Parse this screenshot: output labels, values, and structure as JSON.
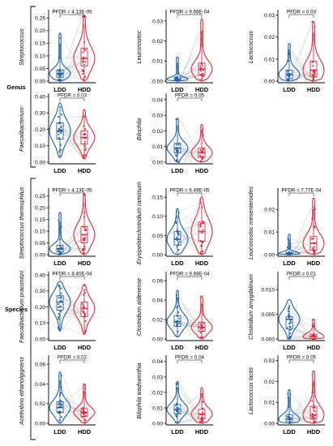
{
  "colors": {
    "ldd": "#1f5fa8",
    "hdd": "#e3263b",
    "pair_line": "#b0b0b0",
    "axis": "#000000"
  },
  "groups": [
    {
      "label": "Genus",
      "panels": [
        0,
        1,
        2,
        3,
        4
      ]
    },
    {
      "label": "Species",
      "panels": [
        5,
        6,
        7,
        8,
        9,
        10,
        11,
        12,
        13
      ]
    }
  ],
  "chart_data": [
    {
      "type": "violin",
      "group": "Genus",
      "ylabel": "Streptococcus",
      "categories": [
        "LDD",
        "HDD"
      ],
      "pfdr": "PFDR = 4.13E-05",
      "yticks": [
        "0.00",
        "0.05",
        "0.10",
        "0.15",
        "0.20",
        "0.25"
      ],
      "ylim": [
        0,
        0.27
      ],
      "grid": false,
      "series": [
        {
          "name": "LDD",
          "median": 0.03,
          "q1": 0.015,
          "q3": 0.045,
          "min": 0.0,
          "max": 0.19
        },
        {
          "name": "HDD",
          "median": 0.09,
          "q1": 0.06,
          "q3": 0.13,
          "min": 0.0,
          "max": 0.26
        }
      ]
    },
    {
      "type": "violin",
      "group": "Genus",
      "ylabel": "Leuconostoc",
      "categories": [
        "LDD",
        "HDD"
      ],
      "pfdr": "PFDR = 9.68E-04",
      "yticks": [
        "0.00",
        "0.01",
        "0.02",
        "0.03"
      ],
      "ylim": [
        0,
        0.034
      ],
      "grid": false,
      "series": [
        {
          "name": "LDD",
          "median": 0.001,
          "q1": 0.0005,
          "q3": 0.002,
          "min": 0.0,
          "max": 0.012
        },
        {
          "name": "HDD",
          "median": 0.006,
          "q1": 0.003,
          "q3": 0.009,
          "min": 0.0,
          "max": 0.031
        }
      ]
    },
    {
      "type": "violin",
      "group": "Genus",
      "ylabel": "Lactococcus",
      "categories": [
        "LDD",
        "HDD"
      ],
      "pfdr": "PFDR = 0.03",
      "yticks": [
        "0.00",
        "0.01",
        "0.02",
        "0.03"
      ],
      "ylim": [
        0,
        0.031
      ],
      "grid": false,
      "series": [
        {
          "name": "LDD",
          "median": 0.003,
          "q1": 0.001,
          "q3": 0.005,
          "min": 0.0,
          "max": 0.017
        },
        {
          "name": "HDD",
          "median": 0.005,
          "q1": 0.002,
          "q3": 0.009,
          "min": 0.0,
          "max": 0.027
        }
      ]
    },
    {
      "type": "violin",
      "group": "Genus",
      "ylabel": "Faecalibacterium",
      "categories": [
        "LDD",
        "HDD"
      ],
      "pfdr": "PFDR = 0.03",
      "yticks": [
        "0.00",
        "0.10",
        "0.20",
        "0.30",
        "0.40"
      ],
      "ylim": [
        0,
        0.4
      ],
      "grid": false,
      "series": [
        {
          "name": "LDD",
          "median": 0.19,
          "q1": 0.14,
          "q3": 0.24,
          "min": 0.03,
          "max": 0.36
        },
        {
          "name": "HDD",
          "median": 0.15,
          "q1": 0.11,
          "q3": 0.19,
          "min": 0.02,
          "max": 0.32
        }
      ]
    },
    {
      "type": "violin",
      "group": "Genus",
      "ylabel": "Bilophila",
      "categories": [
        "LDD",
        "HDD"
      ],
      "pfdr": "PFDR = 0.05",
      "yticks": [
        "0.00",
        "0.01",
        "0.02",
        "0.03",
        "0.04"
      ],
      "ylim": [
        0,
        0.042
      ],
      "grid": false,
      "series": [
        {
          "name": "LDD",
          "median": 0.009,
          "q1": 0.006,
          "q3": 0.012,
          "min": 0.0,
          "max": 0.028
        },
        {
          "name": "HDD",
          "median": 0.006,
          "q1": 0.003,
          "q3": 0.009,
          "min": 0.0,
          "max": 0.024
        }
      ]
    },
    {
      "type": "violin",
      "group": "Species",
      "ylabel": "Streptococcus thermophilus",
      "categories": [
        "LDD",
        "HDD"
      ],
      "pfdr": "PFDR = 4.13E-05",
      "yticks": [
        "0.00",
        "0.05",
        "0.10",
        "0.15",
        "0.20",
        "0.25"
      ],
      "ylim": [
        0,
        0.27
      ],
      "grid": false,
      "series": [
        {
          "name": "LDD",
          "median": 0.025,
          "q1": 0.012,
          "q3": 0.04,
          "min": 0.0,
          "max": 0.18
        },
        {
          "name": "HDD",
          "median": 0.085,
          "q1": 0.05,
          "q3": 0.12,
          "min": 0.0,
          "max": 0.26
        }
      ]
    },
    {
      "type": "violin",
      "group": "Species",
      "ylabel": "Erysipelatoclostridium ramosum",
      "categories": [
        "LDD",
        "HDD"
      ],
      "pfdr": "PFDR = 6.49E-05",
      "yticks": [
        "0.00",
        "0.05",
        "0.10",
        "0.15"
      ],
      "ylim": [
        0,
        0.165
      ],
      "grid": false,
      "series": [
        {
          "name": "LDD",
          "median": 0.04,
          "q1": 0.025,
          "q3": 0.06,
          "min": 0.0,
          "max": 0.12
        },
        {
          "name": "HDD",
          "median": 0.06,
          "q1": 0.035,
          "q3": 0.085,
          "min": 0.0,
          "max": 0.15
        }
      ]
    },
    {
      "type": "violin",
      "group": "Species",
      "ylabel": "Leuconostoc mesenteroides",
      "categories": [
        "LDD",
        "HDD"
      ],
      "pfdr": "PFDR = 7.77E-04",
      "yticks": [
        "0.00",
        "0.01",
        "0.02"
      ],
      "ylim": [
        0,
        0.028
      ],
      "grid": false,
      "series": [
        {
          "name": "LDD",
          "median": 0.0005,
          "q1": 0.0002,
          "q3": 0.001,
          "min": 0.0,
          "max": 0.009
        },
        {
          "name": "HDD",
          "median": 0.005,
          "q1": 0.002,
          "q3": 0.008,
          "min": 0.0,
          "max": 0.025
        }
      ]
    },
    {
      "type": "violin",
      "group": "Species",
      "ylabel": "Faecalibacterium prausnitzii",
      "categories": [
        "LDD",
        "HDD"
      ],
      "pfdr": "PFDR = 8.40E-04",
      "yticks": [
        "0.00",
        "0.10",
        "0.20",
        "0.30",
        "0.40"
      ],
      "ylim": [
        0,
        0.4
      ],
      "grid": false,
      "series": [
        {
          "name": "LDD",
          "median": 0.23,
          "q1": 0.18,
          "q3": 0.27,
          "min": 0.05,
          "max": 0.36
        },
        {
          "name": "HDD",
          "median": 0.19,
          "q1": 0.14,
          "q3": 0.23,
          "min": 0.03,
          "max": 0.34
        }
      ]
    },
    {
      "type": "violin",
      "group": "Species",
      "ylabel": "Clostridium aldenense",
      "categories": [
        "LDD",
        "HDD"
      ],
      "pfdr": "PFDR = 9.68E-04",
      "yticks": [
        "0.00",
        "0.02",
        "0.04",
        "0.06"
      ],
      "ylim": [
        0,
        0.066
      ],
      "grid": false,
      "series": [
        {
          "name": "LDD",
          "median": 0.018,
          "q1": 0.013,
          "q3": 0.024,
          "min": 0.002,
          "max": 0.05
        },
        {
          "name": "HDD",
          "median": 0.012,
          "q1": 0.008,
          "q3": 0.017,
          "min": 0.0,
          "max": 0.044
        }
      ]
    },
    {
      "type": "violin",
      "group": "Species",
      "ylabel": "Clostridium amygdalinum",
      "categories": [
        "LDD",
        "HDD"
      ],
      "pfdr": "PFDR = 0.01",
      "yticks": [
        "0.000",
        "0.005",
        "0.010"
      ],
      "ylim": [
        0,
        0.013
      ],
      "grid": false,
      "series": [
        {
          "name": "LDD",
          "median": 0.004,
          "q1": 0.002,
          "q3": 0.0045,
          "min": 0.0,
          "max": 0.008
        },
        {
          "name": "HDD",
          "median": 0.0005,
          "q1": 0.0,
          "q3": 0.001,
          "min": 0.0,
          "max": 0.004
        }
      ]
    },
    {
      "type": "violin",
      "group": "Species",
      "ylabel": "Acetivibrio ethanolgignens",
      "categories": [
        "LDD",
        "HDD"
      ],
      "pfdr": "PFDR = 0.02",
      "yticks": [
        "0.00",
        "0.02",
        "0.04",
        "0.06"
      ],
      "ylim": [
        0,
        0.066
      ],
      "grid": false,
      "series": [
        {
          "name": "LDD",
          "median": 0.016,
          "q1": 0.011,
          "q3": 0.022,
          "min": 0.0,
          "max": 0.052
        },
        {
          "name": "HDD",
          "median": 0.011,
          "q1": 0.007,
          "q3": 0.015,
          "min": 0.0,
          "max": 0.04
        }
      ]
    },
    {
      "type": "violin",
      "group": "Species",
      "ylabel": "Bilophila wadsworthia",
      "categories": [
        "LDD",
        "HDD"
      ],
      "pfdr": "PFDR = 0.04",
      "yticks": [
        "0.00",
        "0.01",
        "0.02",
        "0.03",
        "0.04"
      ],
      "ylim": [
        0,
        0.042
      ],
      "grid": false,
      "series": [
        {
          "name": "LDD",
          "median": 0.009,
          "q1": 0.006,
          "q3": 0.012,
          "min": 0.0,
          "max": 0.027
        },
        {
          "name": "HDD",
          "median": 0.006,
          "q1": 0.003,
          "q3": 0.009,
          "min": 0.0,
          "max": 0.023
        }
      ]
    },
    {
      "type": "violin",
      "group": "Species",
      "ylabel": "Lactococcus lactis",
      "categories": [
        "LDD",
        "HDD"
      ],
      "pfdr": "PFDR = 0.05",
      "yticks": [
        "0.00",
        "0.01",
        "0.02",
        "0.03"
      ],
      "ylim": [
        0,
        0.031
      ],
      "grid": false,
      "series": [
        {
          "name": "LDD",
          "median": 0.002,
          "q1": 0.0008,
          "q3": 0.004,
          "min": 0.0,
          "max": 0.016
        },
        {
          "name": "HDD",
          "median": 0.004,
          "q1": 0.002,
          "q3": 0.008,
          "min": 0.0,
          "max": 0.025
        }
      ]
    }
  ]
}
